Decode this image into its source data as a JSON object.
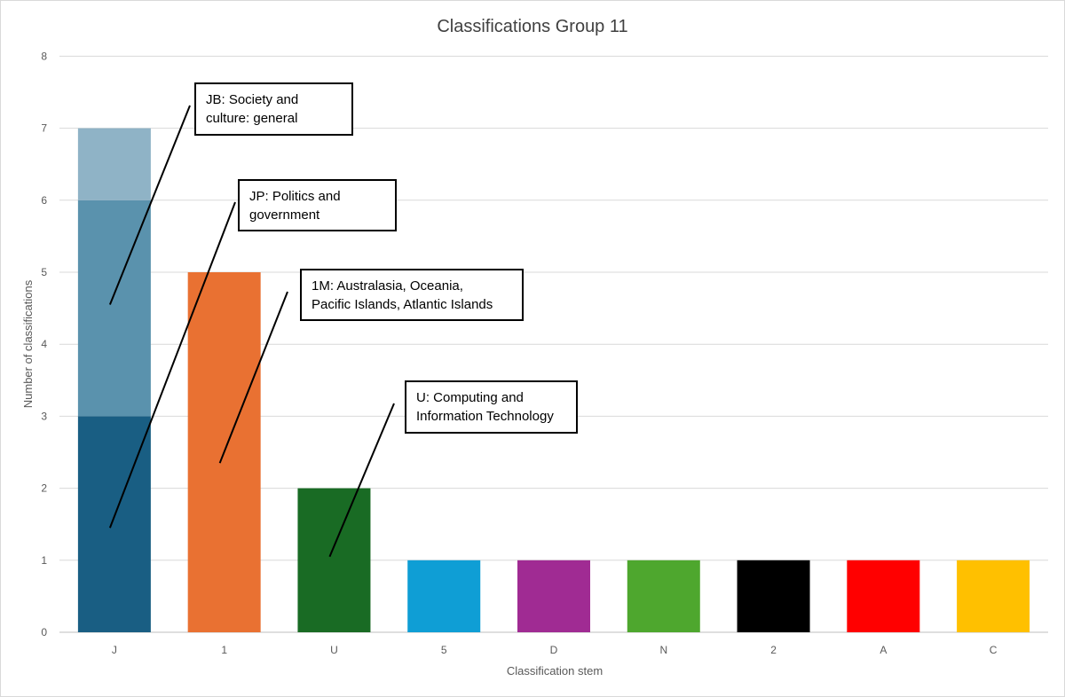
{
  "chart_data": {
    "type": "bar",
    "title": "Classifications Group 11",
    "xlabel": "Classification stem",
    "ylabel": "Number of classifications",
    "ylim": [
      0,
      8
    ],
    "yticks": [
      0,
      1,
      2,
      3,
      4,
      5,
      6,
      7,
      8
    ],
    "grid": true,
    "categories": [
      "J",
      "1",
      "U",
      "5",
      "D",
      "N",
      "2",
      "A",
      "C"
    ],
    "values": [
      7,
      5,
      2,
      1,
      1,
      1,
      1,
      1,
      1
    ],
    "colors": [
      "#195e83",
      "#e97132",
      "#196b24",
      "#0f9ed5",
      "#a02b93",
      "#4ea72e",
      "#000000",
      "#ff0000",
      "#ffc000"
    ],
    "stacked_segments": {
      "J": [
        {
          "label": "JP",
          "value": 3,
          "color": "#195e83"
        },
        {
          "label": "JB",
          "value": 3,
          "color": "#5a92ad"
        },
        {
          "label": "",
          "value": 1,
          "color": "#8fb3c6"
        }
      ]
    },
    "annotations": [
      {
        "lines": [
          "JB: Society and",
          "culture: general"
        ],
        "category": "J",
        "target_value": 4.55
      },
      {
        "lines": [
          "JP: Politics and",
          "government"
        ],
        "category": "J",
        "target_value": 1.45
      },
      {
        "lines": [
          "1M: Australasia, Oceania,",
          "Pacific Islands, Atlantic Islands"
        ],
        "category": "1",
        "target_value": 2.35
      },
      {
        "lines": [
          "U: Computing and",
          "Information Technology"
        ],
        "category": "U",
        "target_value": 1.05
      }
    ]
  }
}
